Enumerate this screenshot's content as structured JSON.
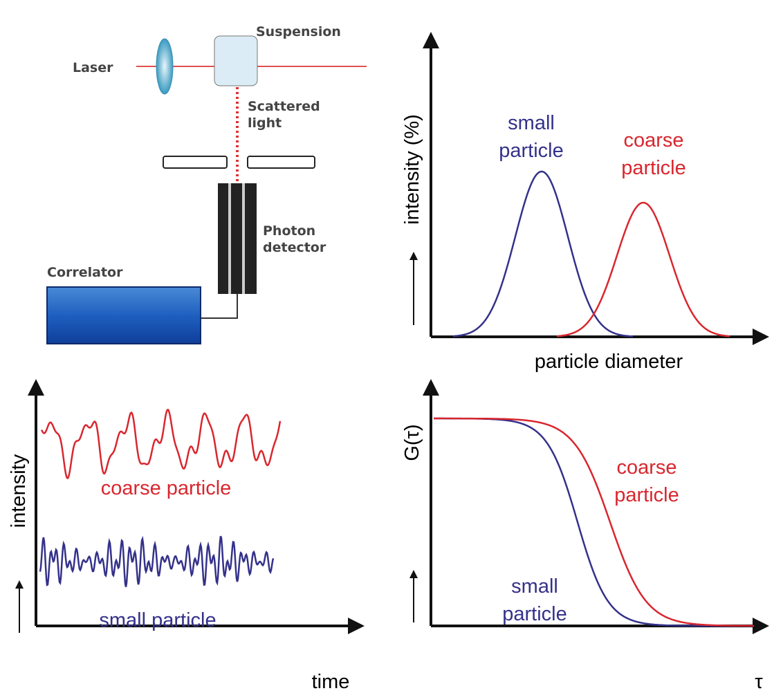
{
  "setup": {
    "suspension": "Suspension",
    "laser": "Laser",
    "scattered_light": [
      "Scattered",
      "light"
    ],
    "photon_detector": [
      "Photon",
      "detector"
    ],
    "correlator": "Correlator"
  },
  "size_distribution": {
    "y_label": "intensity (%)",
    "x_label": "particle diameter",
    "small": [
      "small",
      "particle"
    ],
    "coarse": [
      "coarse",
      "particle"
    ]
  },
  "intensity_trace": {
    "y_label": "intensity",
    "x_label": "time",
    "coarse": "coarse particle",
    "small": "small particle"
  },
  "correlation": {
    "y_label": "G(τ)",
    "x_label": "τ",
    "coarse": [
      "coarse",
      "particle"
    ],
    "small": [
      "small",
      "particle"
    ]
  }
}
